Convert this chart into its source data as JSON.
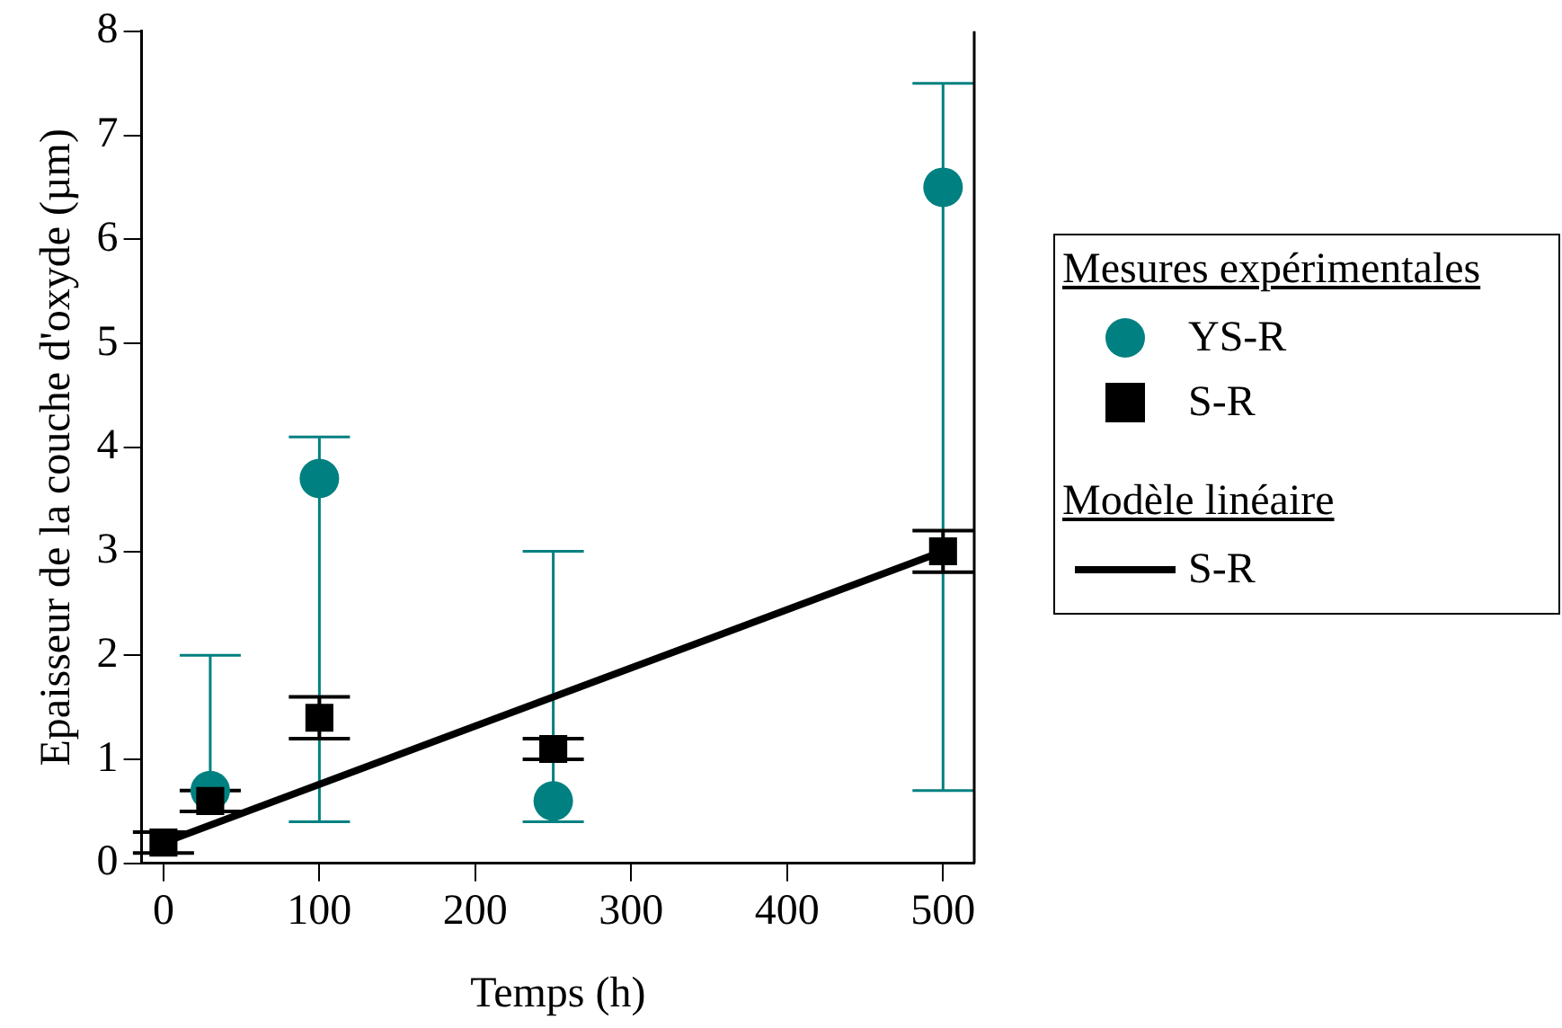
{
  "chart_data": {
    "type": "scatter",
    "xlabel": "Temps (h)",
    "ylabel": "Epaisseur de la couche d'oxyde (µm)",
    "legend_title": "Mesures expérimentales",
    "annotations": [
      "Modèle linéaire"
    ],
    "legend": "right",
    "grid": false,
    "xlim": [
      -14,
      520
    ],
    "xticks": [
      0,
      100,
      200,
      300,
      400,
      500
    ],
    "ylim": [
      0,
      8
    ],
    "yticks": [
      0,
      1,
      2,
      3,
      4,
      5,
      6,
      7,
      8
    ],
    "series": [
      {
        "name": "YS-R",
        "marker": "circle",
        "color": "#008080",
        "x": [
          30,
          100,
          250,
          500
        ],
        "values": [
          0.7,
          3.7,
          0.6,
          6.5
        ],
        "errors": [
          [
            0.5,
            2.0
          ],
          [
            0.4,
            4.1
          ],
          [
            0.4,
            3.0
          ],
          [
            0.7,
            7.5
          ]
        ]
      },
      {
        "name": "S-R",
        "marker": "square",
        "color": "#000000",
        "x": [
          0,
          30,
          100,
          250,
          500
        ],
        "values": [
          0.2,
          0.6,
          1.4,
          1.1,
          3.0
        ],
        "errors": [
          [
            0.1,
            0.3
          ],
          [
            0.5,
            0.7
          ],
          [
            1.2,
            1.6
          ],
          [
            1.0,
            1.2
          ],
          [
            2.8,
            3.2
          ]
        ]
      },
      {
        "name": "S-R",
        "type": "line",
        "marker": "none",
        "line_style": "solid",
        "color": "#000000",
        "x": [
          0,
          500
        ],
        "values": [
          0.2,
          3.0
        ]
      }
    ]
  }
}
